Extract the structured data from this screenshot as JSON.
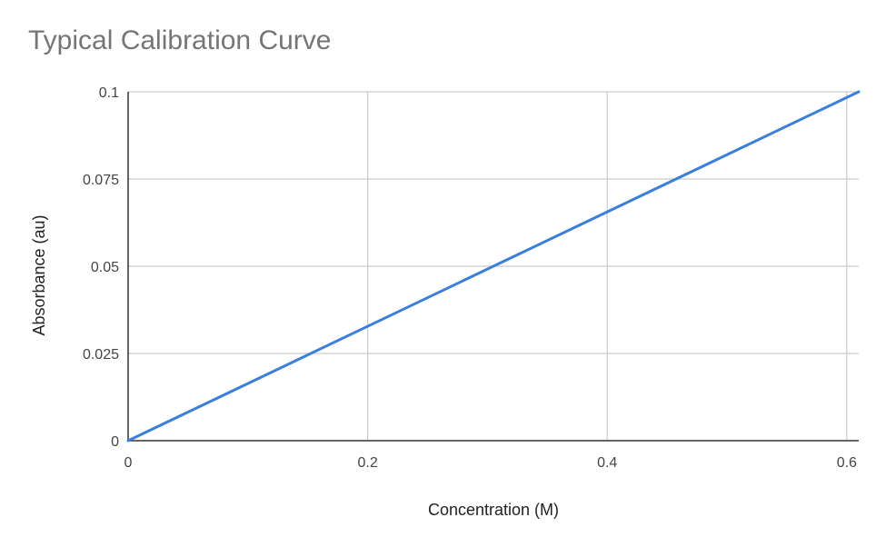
{
  "chart_data": {
    "type": "line",
    "title": "Typical Calibration Curve",
    "xlabel": "Concentration (M)",
    "ylabel": "Absorbance (au)",
    "xlim": [
      0,
      0.61
    ],
    "ylim": [
      0,
      0.1
    ],
    "x_ticks": [
      "0",
      "0.2",
      "0.4",
      "0.6"
    ],
    "y_ticks": [
      "0",
      "0.025",
      "0.05",
      "0.075",
      "0.1"
    ],
    "grid": true,
    "legend": "none",
    "series": [
      {
        "color": "#3c7fd8",
        "points": [
          [
            0,
            0
          ],
          [
            0.61,
            0.1
          ]
        ]
      }
    ]
  }
}
